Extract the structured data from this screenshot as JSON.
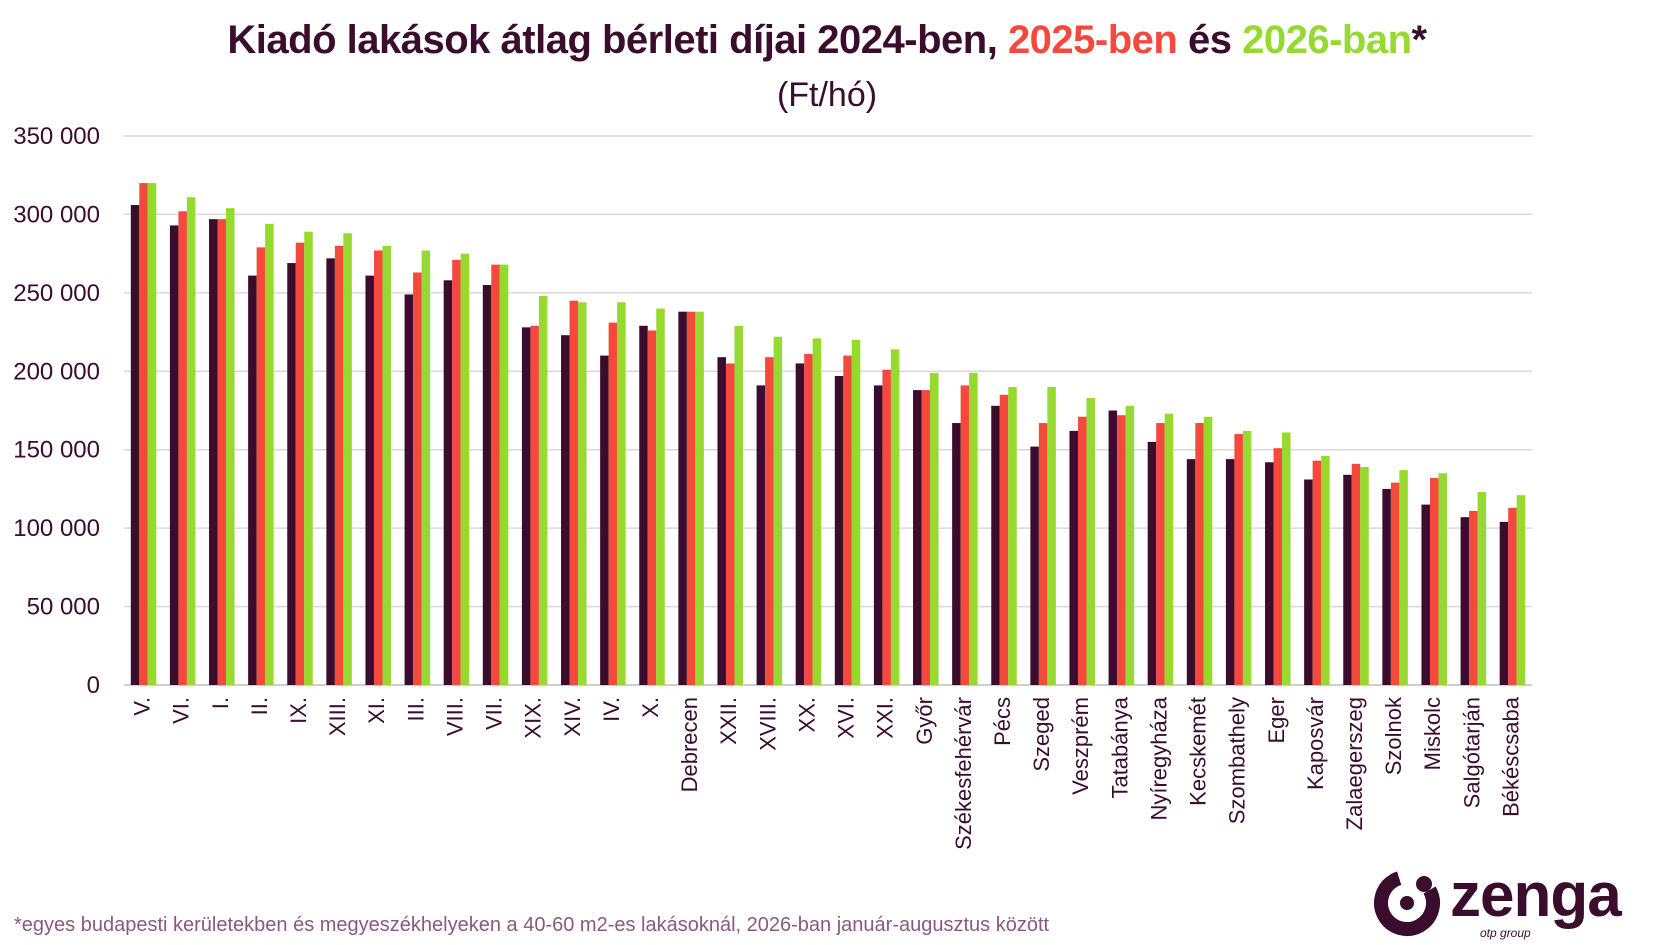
{
  "title": {
    "part1": "Kiadó lakások átlag bérleti díjai 2024-ben, ",
    "part2": "2025-ben",
    "part3": " és ",
    "part4": "2026-ban",
    "part5": "*"
  },
  "subtitle": "(Ft/hó)",
  "footnote": "*egyes budapesti kerületekben és megyeszékhelyeken a 40-60 m2-es lakásoknál, 2026-ban január-augusztus között",
  "logo": {
    "word": "zenga",
    "sub": "otp group"
  },
  "colors": {
    "y2024": "#3a0d2c",
    "y2025": "#f4493c",
    "y2026": "#96d92f",
    "title": "#3a0d2c",
    "grid": "#d9d9d9"
  },
  "chart_data": {
    "type": "bar",
    "ylim": [
      0,
      350000
    ],
    "yticks": [
      0,
      50000,
      100000,
      150000,
      200000,
      250000,
      300000,
      350000
    ],
    "ytick_labels": [
      "0",
      "50 000",
      "100 000",
      "150 000",
      "200 000",
      "250 000",
      "300 000",
      "350 000"
    ],
    "grid": true,
    "categories": [
      "V.",
      "VI.",
      "I.",
      "II.",
      "IX.",
      "XIII.",
      "XI.",
      "III.",
      "VIII.",
      "VII.",
      "XIX.",
      "XIV.",
      "IV.",
      "X.",
      "Debrecen",
      "XXII.",
      "XVIII.",
      "XX.",
      "XVI.",
      "XXI.",
      "Győr",
      "Székesfehérvár",
      "Pécs",
      "Szeged",
      "Veszprém",
      "Tatabánya",
      "Nyíregyháza",
      "Kecskemét",
      "Szombathely",
      "Eger",
      "Kaposvár",
      "Zalaegerszeg",
      "Szolnok",
      "Miskolc",
      "Salgótarján",
      "Békéscsaba"
    ],
    "series": [
      {
        "key": "y2024",
        "values": [
          306000,
          293000,
          297000,
          261000,
          269000,
          272000,
          261000,
          249000,
          258000,
          255000,
          228000,
          223000,
          210000,
          229000,
          238000,
          209000,
          191000,
          205000,
          197000,
          191000,
          188000,
          167000,
          178000,
          152000,
          162000,
          175000,
          155000,
          144000,
          144000,
          142000,
          131000,
          134000,
          125000,
          115000,
          107000,
          104000
        ]
      },
      {
        "key": "y2025",
        "values": [
          320000,
          302000,
          297000,
          279000,
          282000,
          280000,
          277000,
          263000,
          271000,
          268000,
          229000,
          245000,
          231000,
          226000,
          238000,
          205000,
          209000,
          211000,
          210000,
          201000,
          188000,
          191000,
          185000,
          167000,
          171000,
          172000,
          167000,
          167000,
          160000,
          151000,
          143000,
          141000,
          129000,
          132000,
          111000,
          113000
        ]
      },
      {
        "key": "y2026",
        "values": [
          320000,
          311000,
          304000,
          294000,
          289000,
          288000,
          280000,
          277000,
          275000,
          268000,
          248000,
          244000,
          244000,
          240000,
          238000,
          229000,
          222000,
          221000,
          220000,
          214000,
          199000,
          199000,
          190000,
          190000,
          183000,
          178000,
          173000,
          171000,
          162000,
          161000,
          146000,
          139000,
          137000,
          135000,
          123000,
          121000
        ]
      }
    ]
  }
}
